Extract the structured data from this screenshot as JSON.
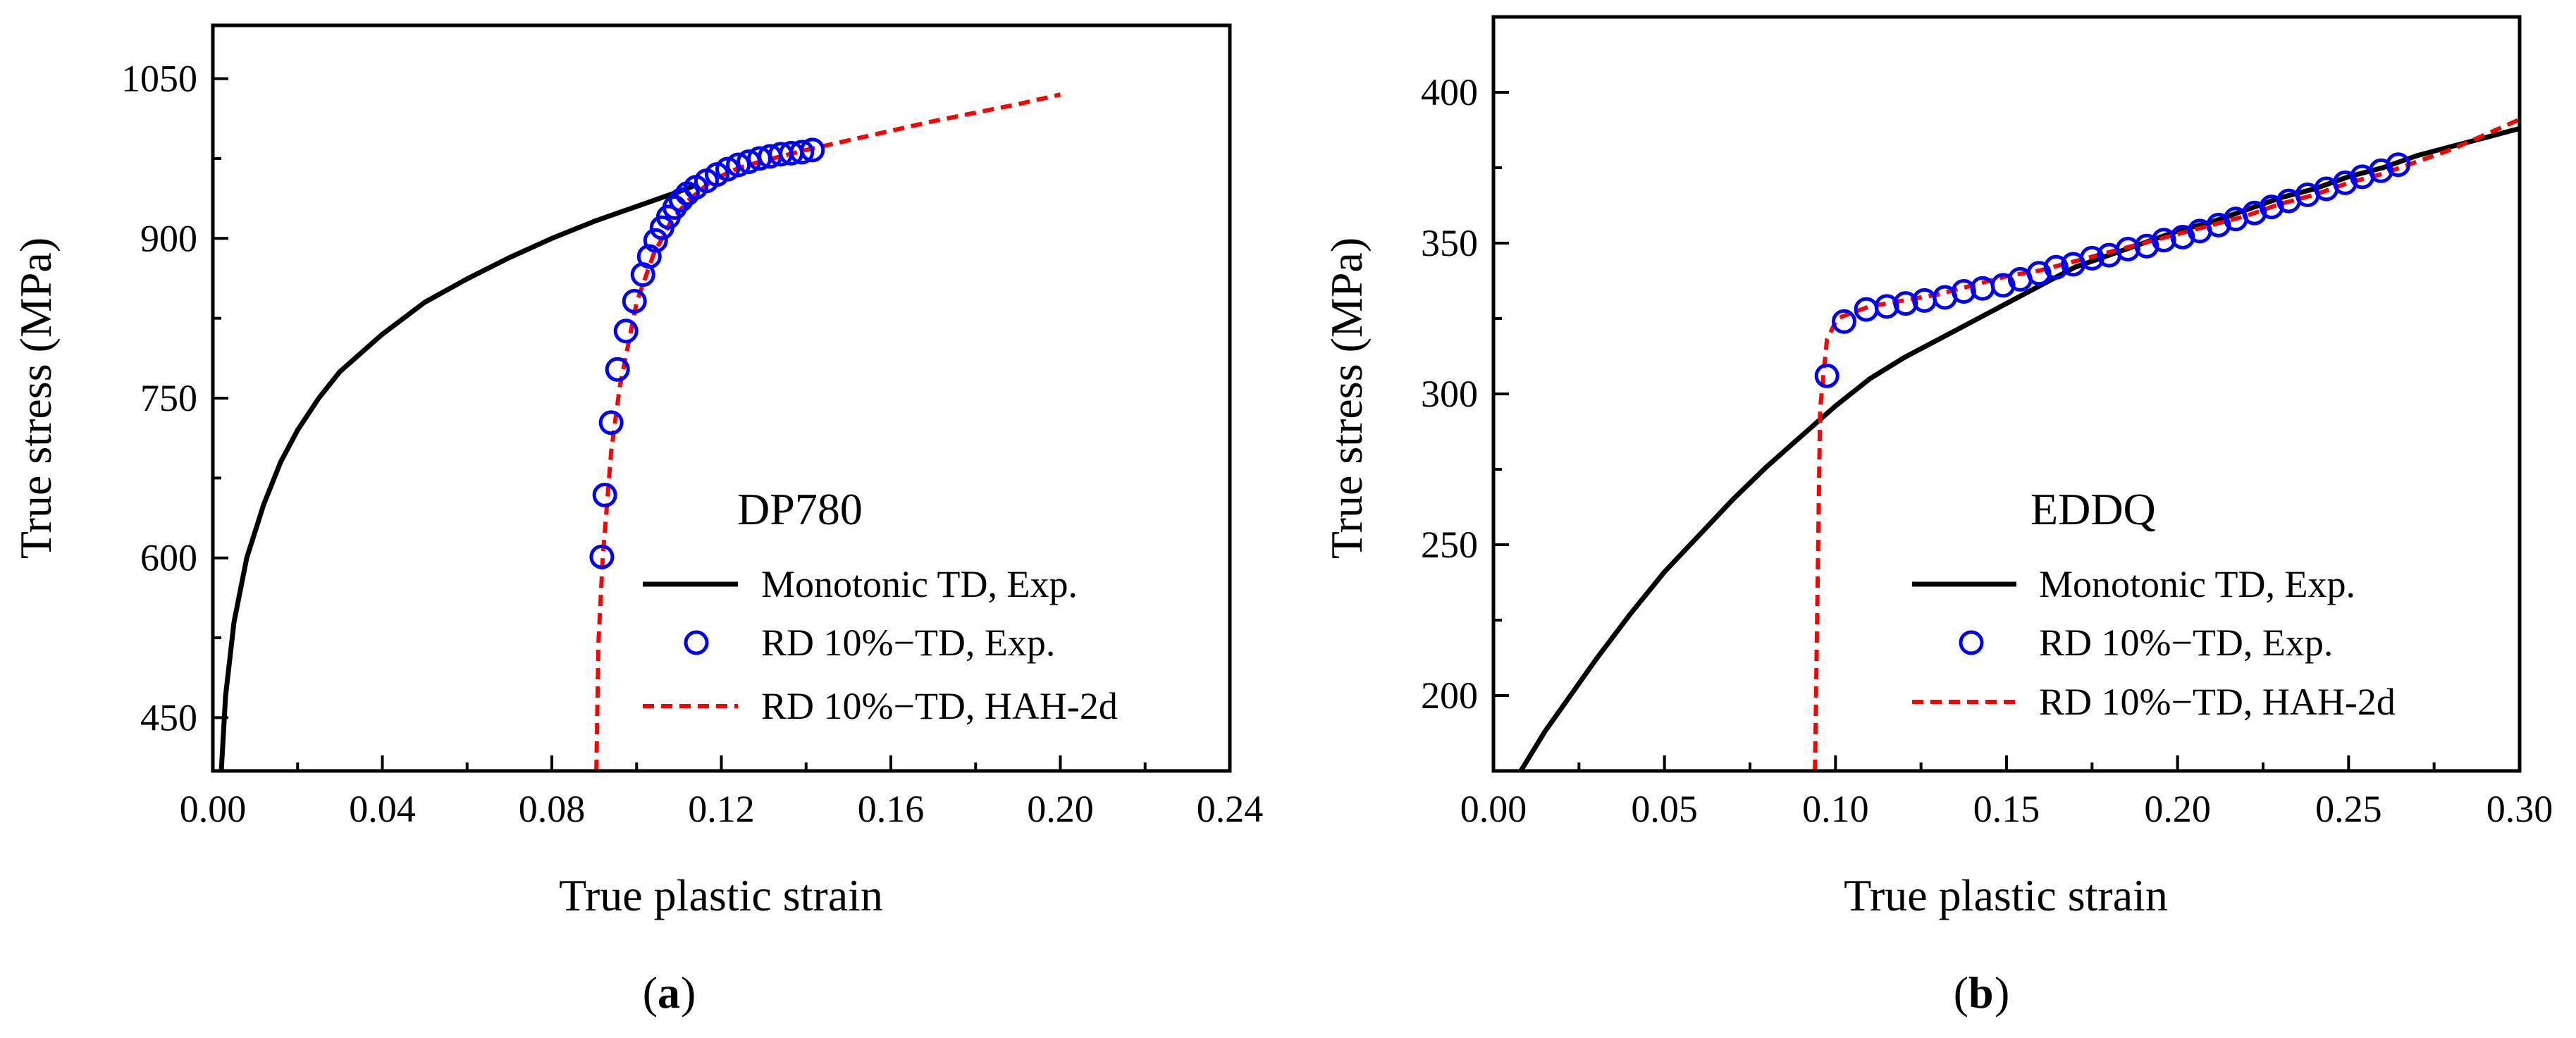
{
  "chart_data": [
    {
      "type": "line",
      "panel_label": "a",
      "annotation": "DP780",
      "xlabel": "True plastic strain",
      "ylabel": "True stress (MPa)",
      "xlim": [
        0.0,
        0.24
      ],
      "ylim": [
        400,
        1100
      ],
      "xticks": [
        "0.00",
        "0.04",
        "0.08",
        "0.12",
        "0.16",
        "0.20",
        "0.24"
      ],
      "yticks": [
        "450",
        "600",
        "750",
        "900",
        "1050"
      ],
      "legend_position": "lower-right",
      "series": [
        {
          "name": "Monotonic TD, Exp.",
          "style": "solid-line",
          "color": "#000000",
          "x": [
            0.002,
            0.003,
            0.005,
            0.008,
            0.012,
            0.016,
            0.02,
            0.025,
            0.03,
            0.04,
            0.05,
            0.06,
            0.07,
            0.08,
            0.09,
            0.1,
            0.11,
            0.114
          ],
          "y": [
            400,
            470,
            540,
            600,
            650,
            690,
            720,
            750,
            775,
            810,
            840,
            862,
            882,
            900,
            916,
            930,
            944,
            950
          ]
        },
        {
          "name": "RD 10%−TD, Exp.",
          "style": "open-circle",
          "color": "#0000ff",
          "x": [
            0.0918,
            0.0925,
            0.094,
            0.0955,
            0.0975,
            0.0995,
            0.1015,
            0.103,
            0.1045,
            0.106,
            0.1075,
            0.109,
            0.1105,
            0.112,
            0.114,
            0.1165,
            0.119,
            0.1215,
            0.124,
            0.1265,
            0.129,
            0.1315,
            0.134,
            0.1365,
            0.139,
            0.1415
          ],
          "y": [
            601,
            659,
            727,
            777,
            813,
            841,
            866,
            883,
            898,
            910,
            920,
            929,
            936,
            942,
            948,
            954,
            960,
            965,
            969,
            972,
            975,
            977,
            979,
            980,
            981,
            983
          ]
        },
        {
          "name": "RD 10%−TD, HAH-2d",
          "style": "dashed-line",
          "color": "#ff0000",
          "x": [
            0.0905,
            0.091,
            0.092,
            0.094,
            0.096,
            0.1,
            0.104,
            0.108,
            0.112,
            0.118,
            0.124,
            0.13,
            0.14,
            0.15,
            0.16,
            0.17,
            0.18,
            0.19,
            0.2
          ],
          "y": [
            400,
            520,
            600,
            700,
            760,
            840,
            885,
            915,
            935,
            955,
            966,
            973,
            983,
            992,
            1001,
            1010,
            1018,
            1026,
            1035
          ]
        }
      ]
    },
    {
      "type": "line",
      "panel_label": "b",
      "annotation": "EDDQ",
      "xlabel": "True plastic strain",
      "ylabel": "True stress (MPa)",
      "xlim": [
        0.0,
        0.3
      ],
      "ylim": [
        175,
        425
      ],
      "xticks": [
        "0.00",
        "0.05",
        "0.10",
        "0.15",
        "0.20",
        "0.25",
        "0.30"
      ],
      "yticks": [
        "200",
        "250",
        "300",
        "350",
        "400"
      ],
      "legend_position": "lower-right",
      "series": [
        {
          "name": "Monotonic TD, Exp.",
          "style": "solid-line",
          "color": "#000000",
          "x": [
            0.008,
            0.015,
            0.02,
            0.03,
            0.04,
            0.05,
            0.06,
            0.07,
            0.08,
            0.09,
            0.1,
            0.11,
            0.12,
            0.13,
            0.14,
            0.15,
            0.16,
            0.17,
            0.18,
            0.19,
            0.2,
            0.21,
            0.22,
            0.23,
            0.24,
            0.25,
            0.26,
            0.27,
            0.28,
            0.29,
            0.3
          ],
          "y": [
            175,
            188,
            196,
            212,
            227,
            241,
            253,
            265,
            276,
            286,
            296,
            305,
            312,
            318,
            324,
            330,
            336,
            342,
            346,
            350,
            354,
            357,
            361,
            365,
            368,
            372,
            375,
            379,
            382,
            385,
            388
          ]
        },
        {
          "name": "RD 10%−TD, Exp.",
          "style": "open-circle",
          "color": "#0000ff",
          "x": [
            0.0975,
            0.1025,
            0.109,
            0.115,
            0.1205,
            0.126,
            0.132,
            0.1375,
            0.143,
            0.149,
            0.154,
            0.1595,
            0.1645,
            0.1695,
            0.175,
            0.18,
            0.1855,
            0.191,
            0.196,
            0.2015,
            0.2065,
            0.212,
            0.217,
            0.2225,
            0.2275,
            0.2325,
            0.238,
            0.2435,
            0.249,
            0.254,
            0.2595,
            0.2645
          ],
          "y": [
            306,
            324,
            328,
            329,
            330,
            331,
            332,
            334,
            335,
            336,
            338,
            340,
            342,
            343,
            345,
            346,
            348,
            349,
            351,
            352,
            354,
            356,
            358,
            360,
            362,
            364,
            366,
            368,
            370,
            372,
            374,
            376
          ]
        },
        {
          "name": "RD 10%−TD, HAH-2d",
          "style": "dashed-line",
          "color": "#ff0000",
          "x": [
            0.094,
            0.0955,
            0.0975,
            0.1005,
            0.105,
            0.11,
            0.12,
            0.13,
            0.14,
            0.15,
            0.16,
            0.17,
            0.18,
            0.19,
            0.2,
            0.21,
            0.22,
            0.23,
            0.24,
            0.25,
            0.26,
            0.27,
            0.28,
            0.29,
            0.3
          ],
          "y": [
            175,
            295,
            318,
            325,
            327,
            329,
            331,
            333,
            336,
            339,
            341,
            344,
            347,
            350,
            353,
            356,
            359,
            363,
            366,
            370,
            373,
            377,
            381,
            386,
            391
          ]
        }
      ]
    }
  ]
}
